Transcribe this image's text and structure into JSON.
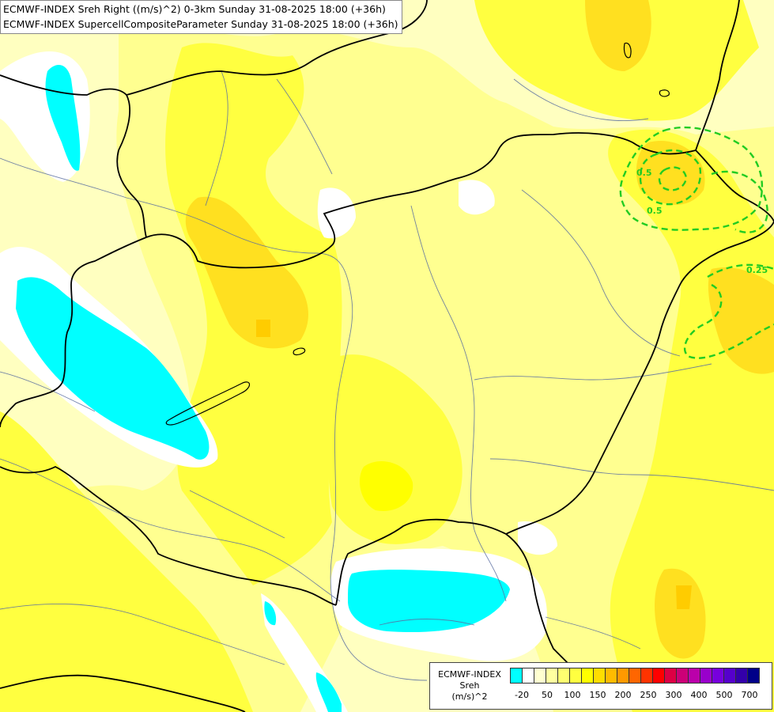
{
  "header": {
    "line1": "ECMWF-INDEX Sreh Right ((m/s)^2) 0-3km Sunday 31-08-2025 18:00 (+36h)",
    "line2": "ECMWF-INDEX SupercellCompositeParameter Sunday 31-08-2025 18:00 (+36h)"
  },
  "contour_labels": [
    "0.5",
    "0.5",
    "0.25"
  ],
  "legend": {
    "title_line1": "ECMWF-INDEX",
    "title_line2": "Sreh",
    "title_line3": "(m/s)^2",
    "colors": [
      "#00ffff",
      "#ffffff",
      "#ffffd0",
      "#ffffa0",
      "#ffff70",
      "#ffff40",
      "#ffff00",
      "#ffdd00",
      "#ffbb00",
      "#ff9900",
      "#ff6600",
      "#ff3300",
      "#ff0000",
      "#dd0044",
      "#cc0077",
      "#bb00aa",
      "#9900cc",
      "#7700dd",
      "#5500cc",
      "#3300aa",
      "#000088"
    ],
    "ticks": [
      "-20",
      "50",
      "100",
      "150",
      "200",
      "250",
      "300",
      "400",
      "500",
      "700"
    ]
  },
  "colors": {
    "cyan": "#00ffff",
    "white": "#ffffff",
    "pale_yellow": "#ffffc0",
    "light_yellow": "#ffff90",
    "yellow": "#ffff40",
    "gold": "#ffe020",
    "orange_gold": "#ffcc00",
    "contour_green": "#22cc22"
  }
}
